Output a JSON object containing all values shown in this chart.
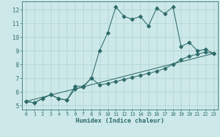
{
  "xlabel": "Humidex (Indice chaleur)",
  "ylabel": "",
  "bg_color": "#cce8e8",
  "line_color": "#2e6b6b",
  "xlim": [
    -0.5,
    23.5
  ],
  "ylim": [
    4.7,
    12.6
  ],
  "xticks": [
    0,
    1,
    2,
    3,
    4,
    5,
    6,
    7,
    8,
    9,
    10,
    11,
    12,
    13,
    14,
    15,
    16,
    17,
    18,
    19,
    20,
    21,
    22,
    23
  ],
  "yticks": [
    5,
    6,
    7,
    8,
    9,
    10,
    11,
    12
  ],
  "line1_x": [
    0,
    1,
    2,
    3,
    4,
    5,
    6,
    7,
    8,
    9,
    10,
    11,
    12,
    13,
    14,
    15,
    16,
    17,
    18,
    19,
    20,
    21,
    22,
    23
  ],
  "line1_y": [
    5.3,
    5.2,
    5.5,
    5.8,
    5.5,
    5.4,
    6.4,
    6.4,
    7.0,
    9.0,
    10.3,
    12.2,
    11.5,
    11.3,
    11.5,
    10.8,
    12.1,
    11.7,
    12.2,
    9.3,
    9.6,
    9.0,
    9.1,
    8.8
  ],
  "line2_x": [
    0,
    1,
    2,
    3,
    4,
    5,
    6,
    7,
    8,
    9,
    10,
    11,
    12,
    13,
    14,
    15,
    16,
    17,
    18,
    19,
    20,
    21,
    22,
    23
  ],
  "line2_y": [
    5.3,
    5.2,
    5.5,
    5.8,
    5.5,
    5.4,
    6.2,
    6.35,
    7.0,
    6.5,
    6.6,
    6.75,
    6.9,
    7.05,
    7.2,
    7.35,
    7.5,
    7.7,
    8.0,
    8.35,
    8.6,
    8.75,
    8.9,
    8.8
  ],
  "line3_x": [
    0,
    23
  ],
  "line3_y": [
    5.3,
    8.8
  ],
  "grid_color": "#b0d0d0",
  "marker_size": 2.5,
  "linewidth": 0.8
}
